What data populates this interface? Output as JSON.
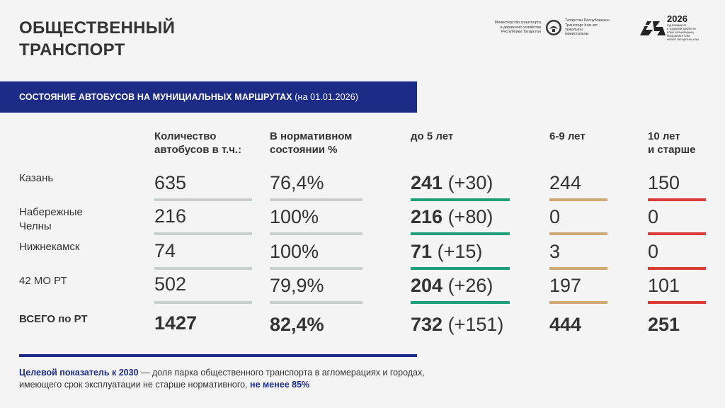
{
  "title": [
    "ОБЩЕСТВЕННЫЙ",
    "ТРАНСПОРТ"
  ],
  "logos": {
    "ministry_ru": [
      "Министерство транспорта",
      "и дорожного хозяйства",
      "Республики Татарстан"
    ],
    "ministry_tt": [
      "Татарстан Республикасы",
      "Транспорт һәм юл хуҗалыгы",
      "министрлыгы"
    ],
    "year": "2026",
    "year_sub": [
      "год взаимного",
      "и трудовой доблести",
      "елны халыкларның",
      "бердәмлеге һәм",
      "хезмәт батырлыгы елы"
    ]
  },
  "banner": {
    "main": "СОСТОЯНИЕ АВТОБУСОВ НА МУНИЦИАЛЬНЫХ МАРШРУТАХ",
    "date": "(на 01.01.2026)"
  },
  "headers": {
    "count": [
      "Количество",
      "автобусов в т.ч.:"
    ],
    "norm": [
      "В нормативном",
      "состоянии %"
    ],
    "age5": "до 5 лет",
    "age69": "6-9 лет",
    "age10": [
      "10 лет",
      "и старше"
    ]
  },
  "rows": [
    {
      "label": [
        "Казань"
      ],
      "count": "635",
      "norm": "76,4%",
      "age5": "241",
      "age5_delta": "(+30)",
      "age69": "244",
      "age10": "150"
    },
    {
      "label": [
        "Набережные",
        "Челны"
      ],
      "count": "216",
      "norm": "100%",
      "age5": "216",
      "age5_delta": "(+80)",
      "age69": "0",
      "age10": "0"
    },
    {
      "label": [
        "Нижнекамск"
      ],
      "count": "74",
      "norm": "100%",
      "age5": "71",
      "age5_delta": "(+15)",
      "age69": "3",
      "age10": "0"
    },
    {
      "label": [
        "42 МО РТ"
      ],
      "count": "502",
      "norm": "79,9%",
      "age5": "204",
      "age5_delta": "(+26)",
      "age69": "197",
      "age10": "101"
    }
  ],
  "total": {
    "label": "ВСЕГО по РТ",
    "count": "1427",
    "norm": "82,4%",
    "age5": "732",
    "age5_delta": "(+151)",
    "age69": "444",
    "age10": "251"
  },
  "note": {
    "highlight": "Целевой показатель к 2030",
    "text": " — доля парка общественного транспорта в агломерациях и городах, имеющего срок эксплуатации не старше нормативного, ",
    "target": "не менее 85%"
  },
  "colors": {
    "banner": "#1c2b86",
    "grey_bar": "#c9cfcc",
    "green_bar": "#1fa07a",
    "tan_bar": "#cfa975",
    "red_bar": "#d93a3a"
  }
}
